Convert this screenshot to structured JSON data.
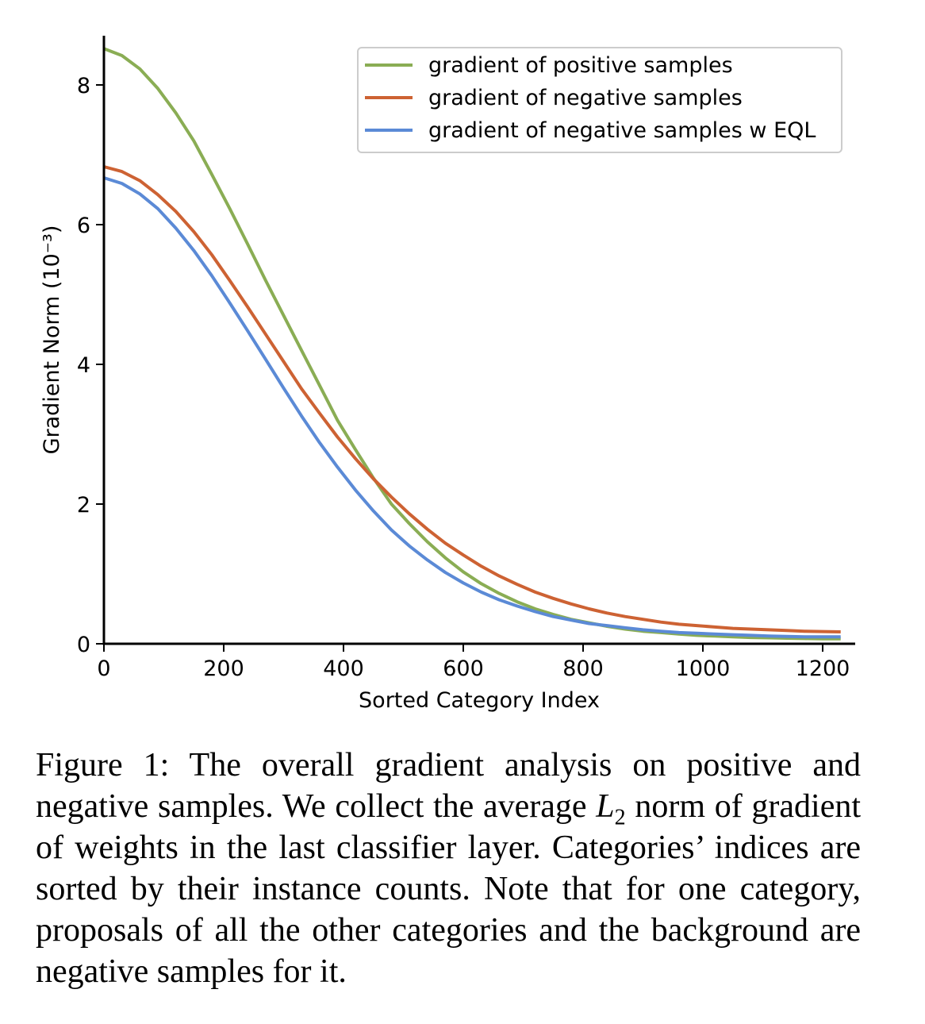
{
  "chart_data": {
    "type": "line",
    "xlabel": "Sorted Category Index",
    "ylabel": "Gradient Norm (10⁻³)",
    "xlim": [
      0,
      1250
    ],
    "ylim": [
      0,
      8.7
    ],
    "xticks": [
      0,
      200,
      400,
      600,
      800,
      1000,
      1200
    ],
    "yticks": [
      0,
      2,
      4,
      6,
      8
    ],
    "legend_position": "top-right",
    "grid": false,
    "x": [
      0,
      30,
      60,
      90,
      120,
      150,
      180,
      210,
      240,
      270,
      300,
      330,
      360,
      390,
      420,
      450,
      480,
      510,
      540,
      570,
      600,
      630,
      660,
      690,
      720,
      750,
      780,
      810,
      840,
      870,
      900,
      930,
      960,
      990,
      1020,
      1050,
      1080,
      1110,
      1140,
      1170,
      1200,
      1230
    ],
    "series": [
      {
        "name": "gradient of positive samples",
        "color": "#8aad54",
        "values": [
          8.52,
          8.42,
          8.23,
          7.95,
          7.6,
          7.2,
          6.72,
          6.23,
          5.72,
          5.2,
          4.7,
          4.2,
          3.7,
          3.2,
          2.78,
          2.37,
          2.0,
          1.72,
          1.46,
          1.23,
          1.03,
          0.86,
          0.72,
          0.6,
          0.5,
          0.42,
          0.35,
          0.3,
          0.25,
          0.21,
          0.18,
          0.16,
          0.14,
          0.12,
          0.11,
          0.1,
          0.09,
          0.085,
          0.08,
          0.075,
          0.07,
          0.07
        ]
      },
      {
        "name": "gradient of negative samples",
        "color": "#cd6233",
        "values": [
          6.83,
          6.76,
          6.63,
          6.43,
          6.19,
          5.9,
          5.57,
          5.2,
          4.82,
          4.43,
          4.04,
          3.65,
          3.3,
          2.96,
          2.65,
          2.36,
          2.1,
          1.86,
          1.64,
          1.44,
          1.27,
          1.11,
          0.97,
          0.85,
          0.74,
          0.65,
          0.57,
          0.5,
          0.44,
          0.39,
          0.35,
          0.31,
          0.28,
          0.26,
          0.24,
          0.22,
          0.21,
          0.2,
          0.19,
          0.18,
          0.175,
          0.17
        ]
      },
      {
        "name": "gradient of negative samples w EQL",
        "color": "#5b8ad6",
        "values": [
          6.67,
          6.59,
          6.44,
          6.23,
          5.95,
          5.63,
          5.27,
          4.88,
          4.48,
          4.07,
          3.66,
          3.26,
          2.88,
          2.53,
          2.2,
          1.9,
          1.63,
          1.4,
          1.2,
          1.02,
          0.87,
          0.74,
          0.63,
          0.54,
          0.46,
          0.39,
          0.34,
          0.29,
          0.26,
          0.23,
          0.2,
          0.18,
          0.16,
          0.15,
          0.14,
          0.13,
          0.12,
          0.11,
          0.105,
          0.1,
          0.1,
          0.1
        ]
      }
    ]
  },
  "caption": {
    "text_1": "Figure 1: The overall gradient analysis on positive and negative samples. We collect the average ",
    "math_var": "L",
    "math_sub": "2",
    "text_2": " norm of gradient of weights in the last classifier layer. Categories’ indices are sorted by their instance counts. Note that for one category, proposals of all the other categories and the background are negative samples for it."
  }
}
